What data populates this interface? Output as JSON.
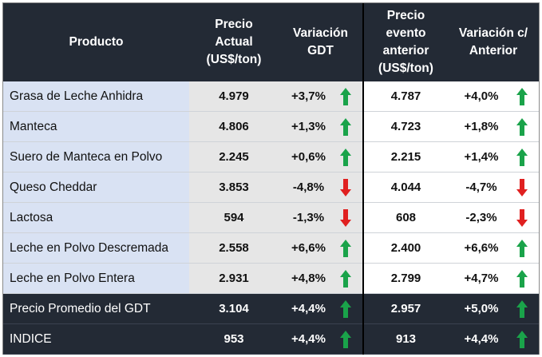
{
  "headers": {
    "producto": "Producto",
    "precio_actual": [
      "Precio",
      "Actual",
      "(US$/ton)"
    ],
    "variacion_gdt": [
      "Variación",
      "GDT"
    ],
    "precio_anterior": [
      "Precio",
      "evento",
      "anterior",
      "(US$/ton)"
    ],
    "variacion_anterior": [
      "Variación c/",
      "Anterior"
    ]
  },
  "rows": [
    {
      "product": "Grasa de Leche Anhidra",
      "price": "4.979",
      "var_gdt": "+3,7%",
      "var_gdt_dir": "up",
      "prev_price": "4.787",
      "var_prev": "+4,0%",
      "var_prev_dir": "up"
    },
    {
      "product": "Manteca",
      "price": "4.806",
      "var_gdt": "+1,3%",
      "var_gdt_dir": "up",
      "prev_price": "4.723",
      "var_prev": "+1,8%",
      "var_prev_dir": "up"
    },
    {
      "product": "Suero de Manteca en Polvo",
      "price": "2.245",
      "var_gdt": "+0,6%",
      "var_gdt_dir": "up",
      "prev_price": "2.215",
      "var_prev": "+1,4%",
      "var_prev_dir": "up"
    },
    {
      "product": "Queso Cheddar",
      "price": "3.853",
      "var_gdt": "-4,8%",
      "var_gdt_dir": "down",
      "prev_price": "4.044",
      "var_prev": "-4,7%",
      "var_prev_dir": "down"
    },
    {
      "product": "Lactosa",
      "price": "594",
      "var_gdt": "-1,3%",
      "var_gdt_dir": "down",
      "prev_price": "608",
      "var_prev": "-2,3%",
      "var_prev_dir": "down"
    },
    {
      "product": "Leche en Polvo Descremada",
      "price": "2.558",
      "var_gdt": "+6,6%",
      "var_gdt_dir": "up",
      "prev_price": "2.400",
      "var_prev": "+6,6%",
      "var_prev_dir": "up"
    },
    {
      "product": "Leche en Polvo Entera",
      "price": "2.931",
      "var_gdt": "+4,8%",
      "var_gdt_dir": "up",
      "prev_price": "2.799",
      "var_prev": "+4,7%",
      "var_prev_dir": "up"
    }
  ],
  "summary_rows": [
    {
      "product": "Precio Promedio del GDT",
      "price": "3.104",
      "var_gdt": "+4,4%",
      "var_gdt_dir": "up",
      "prev_price": "2.957",
      "var_prev": "+5,0%",
      "var_prev_dir": "up"
    },
    {
      "product": "INDICE",
      "price": "953",
      "var_gdt": "+4,4%",
      "var_gdt_dir": "up",
      "prev_price": "913",
      "var_prev": "+4,4%",
      "var_prev_dir": "up"
    }
  ],
  "colors": {
    "header_bg": "#232a35",
    "product_col_bg": "#d9e2f3",
    "current_cols_bg": "#e6e6e6",
    "arrow_up": "#1aa34a",
    "arrow_down": "#e02020"
  }
}
